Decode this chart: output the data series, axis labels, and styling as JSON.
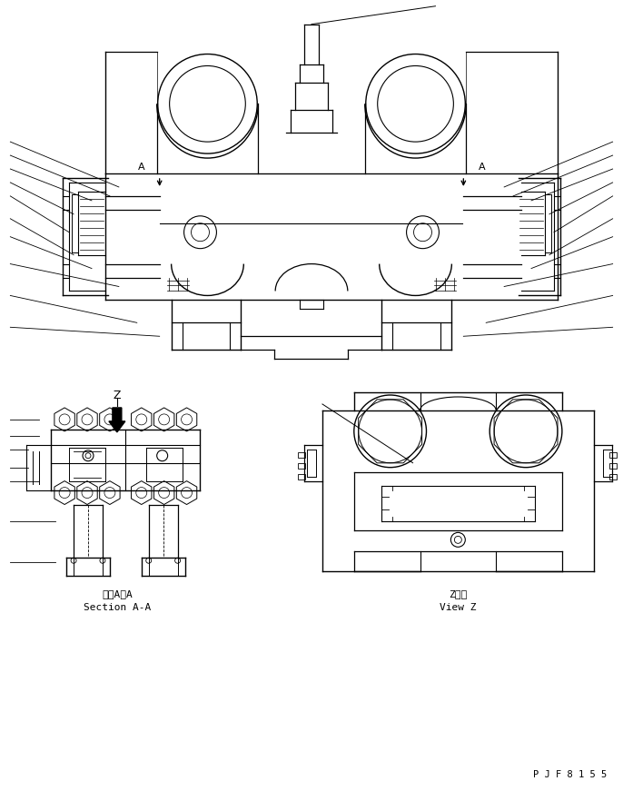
{
  "bg_color": "#ffffff",
  "line_color": "#000000",
  "fig_width": 6.86,
  "fig_height": 8.71,
  "dpi": 100,
  "label_section_aa_jp": "断面A－A",
  "label_section_aa_en": "Section A-A",
  "label_view_z_jp": "Z　視",
  "label_view_z_en": "View Z",
  "label_part_number": "P J F 8 1 5 5",
  "label_Z": "Z"
}
